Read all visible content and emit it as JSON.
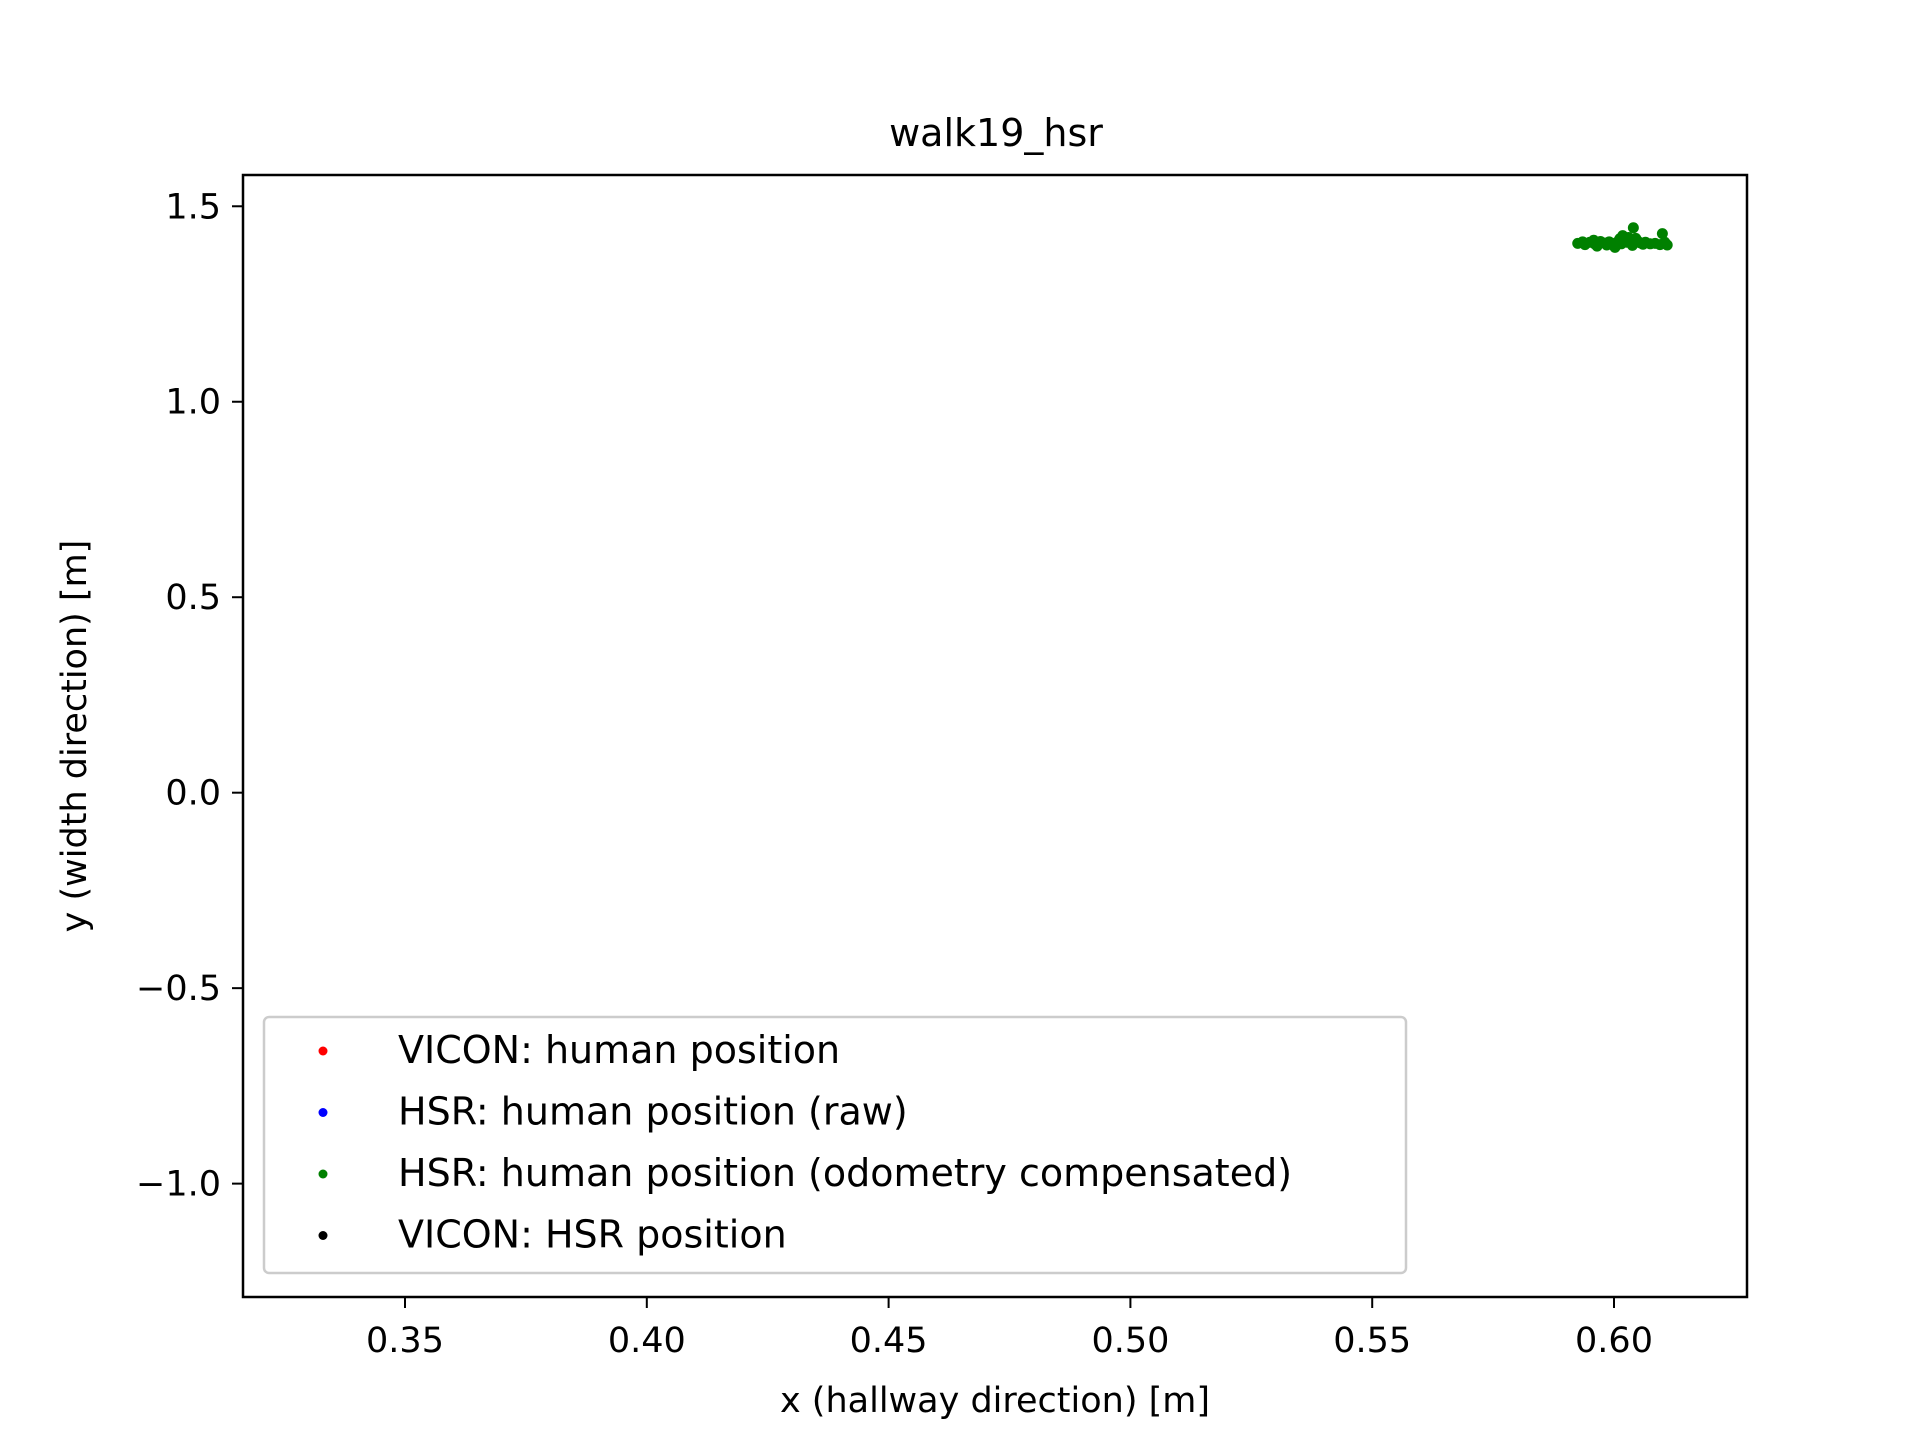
{
  "chart_data": {
    "type": "scatter",
    "title": "walk19_hsr",
    "xlabel": "x (hallway direction) [m]",
    "ylabel": "y (width direction) [m]",
    "xlim": [
      0.3165,
      0.6275
    ],
    "ylim": [
      -1.29,
      1.58
    ],
    "xticks": [
      0.35,
      0.4,
      0.45,
      0.5,
      0.55,
      0.6
    ],
    "xtick_labels": [
      "0.35",
      "0.40",
      "0.45",
      "0.50",
      "0.55",
      "0.60"
    ],
    "yticks": [
      -1.0,
      -0.5,
      0.0,
      0.5,
      1.0,
      1.5
    ],
    "ytick_labels": [
      "−1.0",
      "−0.5",
      "0.0",
      "0.5",
      "1.0",
      "1.5"
    ],
    "grid": false,
    "legend_position": "lower-left",
    "series": [
      {
        "name": "VICON: human position",
        "color": "#ff0000",
        "points": []
      },
      {
        "name": "HSR: human position (raw)",
        "color": "#0000ff",
        "points": []
      },
      {
        "name": "HSR: human position (odometry compensated)",
        "color": "#008000",
        "points": [
          [
            0.5925,
            1.405
          ],
          [
            0.594,
            1.402
          ],
          [
            0.595,
            1.408
          ],
          [
            0.596,
            1.404
          ],
          [
            0.5965,
            1.398
          ],
          [
            0.5972,
            1.41
          ],
          [
            0.598,
            1.406
          ],
          [
            0.5985,
            1.401
          ],
          [
            0.599,
            1.409
          ],
          [
            0.5995,
            1.403
          ],
          [
            0.6,
            1.399
          ],
          [
            0.6005,
            1.407
          ],
          [
            0.601,
            1.412
          ],
          [
            0.6015,
            1.404
          ],
          [
            0.6018,
            1.425
          ],
          [
            0.6022,
            1.416
          ],
          [
            0.6026,
            1.408
          ],
          [
            0.603,
            1.42
          ],
          [
            0.6035,
            1.413
          ],
          [
            0.604,
            1.445
          ],
          [
            0.6045,
            1.418
          ],
          [
            0.605,
            1.41
          ],
          [
            0.6055,
            1.406
          ],
          [
            0.606,
            1.403
          ],
          [
            0.6065,
            1.408
          ],
          [
            0.6075,
            1.404
          ],
          [
            0.6085,
            1.405
          ],
          [
            0.6095,
            1.402
          ],
          [
            0.61,
            1.43
          ],
          [
            0.6105,
            1.408
          ],
          [
            0.611,
            1.401
          ],
          [
            0.5958,
            1.413
          ],
          [
            0.6002,
            1.395
          ],
          [
            0.6038,
            1.4
          ],
          [
            0.5935,
            1.409
          ],
          [
            0.6012,
            1.417
          ]
        ]
      },
      {
        "name": "VICON: HSR position",
        "color": "#000000",
        "points": []
      }
    ]
  }
}
